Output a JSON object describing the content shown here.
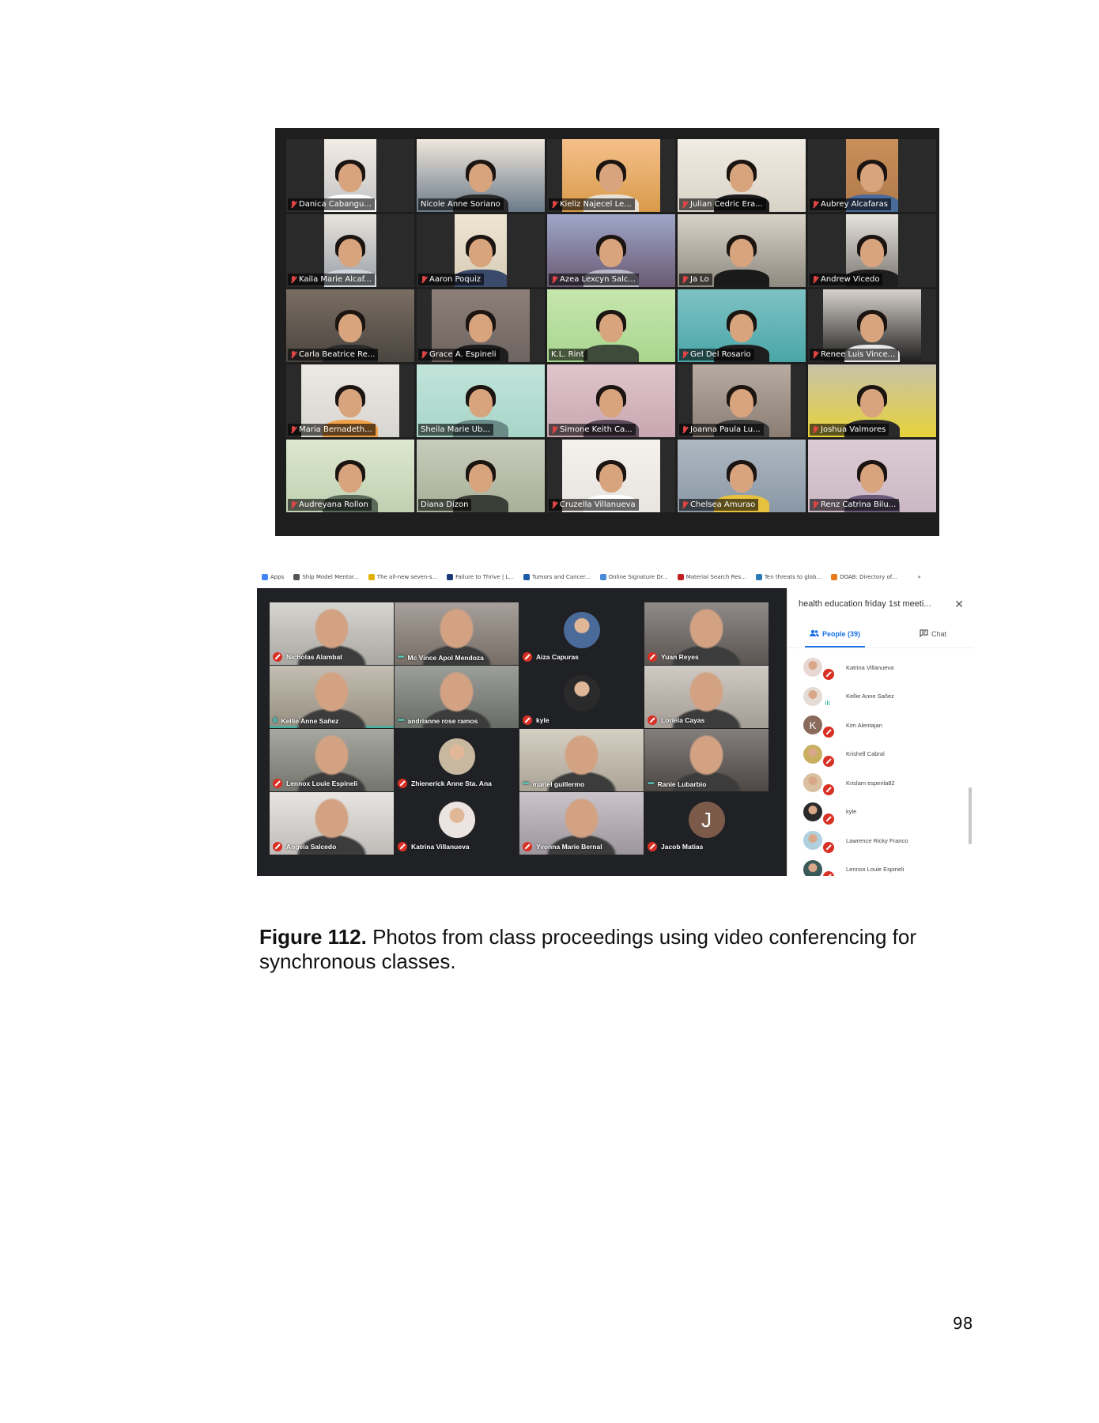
{
  "zoom": {
    "participants": [
      {
        "name": "Danica Cabangu...",
        "muted": true,
        "bg": "#c4c4c4",
        "person": "#f2ece6",
        "cam": "narrow",
        "shirt": "#ffffff"
      },
      {
        "name": "Nicole Anne Soriano",
        "muted": false,
        "active": true,
        "bg": "#6b7b8a",
        "person": "#f0e6dc",
        "cam": "full",
        "shirt": "#2b2b2b"
      },
      {
        "name": "Kieliz Najecel Le...",
        "muted": true,
        "bg": "#d99b4a",
        "person": "#f5c08a",
        "cam": "wide",
        "shirt": "#e8e2d6"
      },
      {
        "name": "Julian Cedric Era...",
        "muted": true,
        "bg": "#d9d2c7",
        "person": "#f1ece3",
        "cam": "full",
        "shirt": "#1c1c1c"
      },
      {
        "name": "Aubrey Alcafaras",
        "muted": true,
        "bg": "#b07a4a",
        "person": "#c88f5a",
        "cam": "narrow",
        "shirt": "#4a6a9a"
      },
      {
        "name": "Kaila Marie Alcaf...",
        "muted": true,
        "bg": "#9aa0a8",
        "person": "#e8e3dd",
        "cam": "narrow",
        "shirt": "#cfd6dd"
      },
      {
        "name": "Aaron Poquiz",
        "muted": true,
        "bg": "#d6ccb8",
        "person": "#eee5d2",
        "cam": "narrow",
        "shirt": "#3a4a6a"
      },
      {
        "name": "Azea Lexcyn Salc...",
        "muted": true,
        "bg": "#6a5a74",
        "person": "#9fa6c8",
        "cam": "full",
        "shirt": "#b8b8c8"
      },
      {
        "name": "Ja Lo",
        "muted": true,
        "bg": "#8f8a80",
        "person": "#d8d2c8",
        "cam": "full",
        "shirt": "#1a1a1a"
      },
      {
        "name": "Andrew Vicedo",
        "muted": true,
        "bg": "#7a7570",
        "person": "#e6e2dc",
        "cam": "narrow",
        "shirt": "#1e1e1e"
      },
      {
        "name": "Carla Beatrice Re...",
        "muted": true,
        "bg": "#4a4540",
        "person": "#7a6e62",
        "cam": "full",
        "shirt": "#2a2a2a"
      },
      {
        "name": "Grace A. Espineli",
        "muted": true,
        "bg": "#6e6460",
        "person": "#8c7f78",
        "cam": "wide",
        "shirt": "#1e1e1e"
      },
      {
        "name": "K.L. Rint",
        "muted": false,
        "bg": "#a9d68f",
        "person": "#c6e6ae",
        "cam": "full",
        "shirt": "#3e4a3a"
      },
      {
        "name": "Gel Del Rosario",
        "muted": true,
        "bg": "#4aa6a8",
        "person": "#7fc2c4",
        "cam": "full",
        "shirt": "#1e1e1e"
      },
      {
        "name": "Renee Luis Vince...",
        "muted": true,
        "bg": "#1e1e1e",
        "person": "#d8d2cc",
        "cam": "wide",
        "shirt": "#e8e8e8"
      },
      {
        "name": "Maria Bernadeth...",
        "muted": true,
        "bg": "#d8d6d2",
        "person": "#ece8e4",
        "cam": "wide",
        "shirt": "#f0a048"
      },
      {
        "name": "Sheila Marie Ub...",
        "muted": false,
        "bg": "#a6d6c8",
        "person": "#c2e4da",
        "cam": "full",
        "shirt": "#6a8a88"
      },
      {
        "name": "Simone Keith Ca...",
        "muted": true,
        "bg": "#c8a6b0",
        "person": "#e0c6cc",
        "cam": "full",
        "shirt": "#5a4a5a"
      },
      {
        "name": "Joanna Paula Lu...",
        "muted": true,
        "bg": "#8a7e74",
        "person": "#b8aca2",
        "cam": "wide",
        "shirt": "#3a3a3a"
      },
      {
        "name": "Joshua Valmores",
        "muted": true,
        "bg": "#e6d23a",
        "person": "#c8c2a8",
        "cam": "full",
        "shirt": "#2a2a2a"
      },
      {
        "name": "Audreyana Rollon",
        "muted": true,
        "bg": "#c0d0b0",
        "person": "#dde8d0",
        "cam": "full",
        "shirt": "#5a6a5a"
      },
      {
        "name": "Diana Dizon",
        "muted": false,
        "bg": "#a8b098",
        "person": "#c8ccbc",
        "cam": "full",
        "shirt": "#3a3e36"
      },
      {
        "name": "Cruzella Villanueva",
        "muted": true,
        "bg": "#e8e4e0",
        "person": "#f4f0ec",
        "cam": "wide",
        "shirt": "#ffffff"
      },
      {
        "name": "Chelsea Amurao",
        "muted": true,
        "bg": "#8a98a6",
        "person": "#aeb8c2",
        "cam": "full",
        "shirt": "#e8c040"
      },
      {
        "name": "Renz Catrina Bilu...",
        "muted": true,
        "bg": "#cbb8c4",
        "person": "#dccad4",
        "cam": "full",
        "shirt": "#6a5a7a"
      }
    ]
  },
  "meet": {
    "bookmarks": [
      {
        "label": "Apps",
        "icon": "apps-grid-icon",
        "color": "#4285f4"
      },
      {
        "label": "Ship Model Mentor...",
        "icon": "globe-icon",
        "color": "#555555"
      },
      {
        "label": "The all-new seven-s...",
        "icon": "site-icon",
        "color": "#e2b100"
      },
      {
        "label": "Failure to Thrive | L...",
        "icon": "site-icon",
        "color": "#1a3a7a"
      },
      {
        "label": "Tumors and Cancer...",
        "icon": "site-icon",
        "color": "#1a5aa8"
      },
      {
        "label": "Online Signature Dr...",
        "icon": "site-icon",
        "color": "#4a8ad8"
      },
      {
        "label": "Material Search Res...",
        "icon": "site-icon",
        "color": "#c02020"
      },
      {
        "label": "Ten threats to glob...",
        "icon": "site-icon",
        "color": "#2a7ab8"
      },
      {
        "label": "DOAB: Directory of...",
        "icon": "site-icon",
        "color": "#e87a1a"
      }
    ],
    "bookmarks_more": "»",
    "participants": [
      {
        "name": "Nicholas Alambat",
        "status": "muted",
        "bg": "#c8c6c0"
      },
      {
        "name": "Mc Vince Apol Mendoza",
        "status": "talking",
        "bg": "#8a8078"
      },
      {
        "name": "Aiza Capuras",
        "status": "muted",
        "bg": "#202124",
        "avatar": "#4a6a9a"
      },
      {
        "name": "Yuan Reyes",
        "status": "muted",
        "bg": "#6a6460"
      },
      {
        "name": "Kellie Anne Sañez",
        "status": "speaking",
        "bg": "#b0a898"
      },
      {
        "name": "andrianne rose ramos",
        "status": "talking",
        "bg": "#7a7e78"
      },
      {
        "name": "kyle",
        "status": "muted",
        "bg": "#202124",
        "avatar": "#2a2a2a"
      },
      {
        "name": "Loriela Cayas",
        "status": "muted",
        "bg": "#c0b8b0"
      },
      {
        "name": "Lennox Louie Espineli",
        "status": "muted",
        "bg": "#8a8a82"
      },
      {
        "name": "Zhienerick Anne Sta. Ana",
        "status": "muted",
        "bg": "#202124",
        "avatar": "#c8b8a0"
      },
      {
        "name": "mariel guillermo",
        "status": "talking",
        "bg": "#c8c0b0"
      },
      {
        "name": "Ranie Lubarbio",
        "status": "talking",
        "bg": "#5a5450"
      },
      {
        "name": "Angela Salcedo",
        "status": "muted",
        "bg": "#e0dcd8"
      },
      {
        "name": "Katrina Villanueva",
        "status": "muted",
        "bg": "#202124",
        "avatar": "#ece4e0"
      },
      {
        "name": "Yvonna Marie Bernal",
        "status": "muted",
        "bg": "#b8b0b8"
      },
      {
        "name": "Jacob Matias",
        "status": "muted",
        "bg": "#202124",
        "letter": "J"
      }
    ],
    "meeting_title": "health education friday 1st meeti...",
    "tabs": {
      "people": "People (39)",
      "chat": "Chat"
    },
    "people_list": [
      {
        "name": "Katrina Villanueva",
        "muted": true,
        "avatar": "#e8d8d4"
      },
      {
        "name": "Kellie Anne Sañez",
        "muted": false,
        "avatar": "#e4dcd4"
      },
      {
        "name": "Kim Alentajan",
        "muted": true,
        "avatar": "#8a6a5a",
        "letter": "K"
      },
      {
        "name": "Krishell Cabral",
        "muted": true,
        "avatar": "#c8b060"
      },
      {
        "name": "Krislam esperila82",
        "muted": true,
        "avatar": "#d8c0a0"
      },
      {
        "name": "kyle",
        "muted": true,
        "avatar": "#2a2a2a"
      },
      {
        "name": "Lawrence Ricky Franco",
        "muted": true,
        "avatar": "#b0d0e0"
      },
      {
        "name": "Lennox Louie Espineli",
        "muted": true,
        "avatar": "#3a5a5a"
      }
    ]
  },
  "caption": {
    "label": "Figure 112.",
    "text": " Photos from class proceedings using video conferencing for synchronous classes."
  },
  "page_number": "98"
}
